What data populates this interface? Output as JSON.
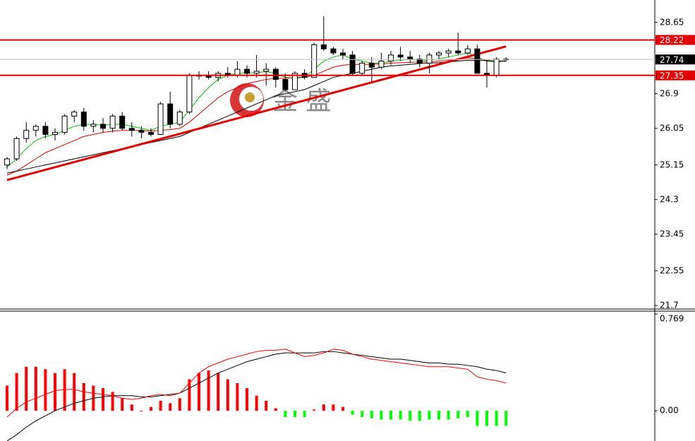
{
  "watermark": "金 盛",
  "chart_data": [
    {
      "type": "candlestick",
      "open": [
        25.15,
        25.3,
        25.8,
        26.0,
        26.1,
        25.9,
        25.95,
        26.35,
        26.45,
        26.1,
        26.15,
        26.05,
        26.35,
        26.05,
        26.0,
        25.95,
        25.9,
        26.65,
        26.15,
        26.45,
        27.35,
        27.35,
        27.3,
        27.4,
        27.35,
        27.5,
        27.4,
        27.45,
        27.5,
        27.25,
        27.0,
        27.4,
        27.3,
        28.1,
        28.0,
        27.9,
        27.85,
        27.4,
        27.65,
        27.55,
        27.7,
        27.85,
        27.8,
        27.75,
        27.65,
        27.85,
        27.9,
        27.95,
        27.9,
        28.0,
        27.4,
        27.35,
        27.75
      ],
      "high": [
        25.35,
        25.85,
        26.2,
        26.15,
        26.2,
        26.05,
        26.4,
        26.5,
        26.55,
        26.25,
        26.3,
        26.4,
        26.45,
        26.2,
        26.1,
        26.05,
        26.7,
        26.95,
        26.5,
        27.4,
        27.45,
        27.45,
        27.45,
        27.55,
        27.7,
        27.6,
        27.85,
        27.65,
        27.55,
        27.4,
        27.45,
        27.5,
        28.15,
        28.8,
        28.05,
        28.0,
        27.95,
        27.7,
        27.8,
        27.9,
        27.95,
        28.05,
        27.95,
        27.85,
        27.9,
        27.95,
        28.0,
        28.4,
        28.1,
        28.1,
        27.7,
        27.8,
        27.8
      ],
      "low": [
        25.05,
        25.25,
        25.7,
        25.85,
        25.8,
        25.75,
        25.9,
        26.2,
        26.0,
        25.95,
        25.95,
        25.95,
        26.0,
        25.85,
        25.8,
        25.85,
        25.9,
        26.05,
        26.1,
        26.4,
        27.25,
        27.25,
        27.2,
        27.3,
        27.3,
        27.3,
        27.3,
        27.1,
        27.05,
        26.95,
        27.0,
        27.25,
        27.3,
        27.95,
        27.85,
        27.75,
        27.35,
        27.35,
        27.2,
        27.5,
        27.6,
        27.7,
        27.65,
        27.55,
        27.4,
        27.75,
        27.8,
        27.85,
        27.85,
        27.45,
        27.05,
        27.3,
        27.7
      ],
      "close": [
        25.3,
        25.8,
        26.0,
        26.1,
        25.9,
        25.95,
        26.35,
        26.45,
        26.1,
        26.15,
        26.05,
        26.35,
        26.05,
        26.0,
        25.95,
        25.9,
        26.65,
        26.15,
        26.45,
        27.35,
        27.35,
        27.3,
        27.4,
        27.35,
        27.5,
        27.4,
        27.45,
        27.5,
        27.25,
        27.0,
        27.4,
        27.3,
        28.1,
        28.0,
        27.9,
        27.85,
        27.4,
        27.65,
        27.55,
        27.7,
        27.85,
        27.8,
        27.75,
        27.65,
        27.85,
        27.9,
        27.95,
        27.9,
        28.0,
        27.4,
        27.35,
        27.75,
        27.74
      ],
      "series": [
        {
          "color": "#00c000",
          "values": [
            25.1,
            25.3,
            25.55,
            25.75,
            25.85,
            25.9,
            26.0,
            26.1,
            26.15,
            26.15,
            26.12,
            26.15,
            26.15,
            26.1,
            26.05,
            26.0,
            26.1,
            26.15,
            26.2,
            26.5,
            26.8,
            27.05,
            27.25,
            27.35,
            27.4,
            27.4,
            27.42,
            27.44,
            27.4,
            27.3,
            27.28,
            27.3,
            27.5,
            27.7,
            27.8,
            27.85,
            27.75,
            27.7,
            27.65,
            27.65,
            27.7,
            27.72,
            27.75,
            27.72,
            27.72,
            27.75,
            27.8,
            27.85,
            27.9,
            27.8,
            27.7,
            27.68,
            27.7
          ]
        },
        {
          "color": "#e00000",
          "values": [
            24.9,
            25.0,
            25.15,
            25.3,
            25.45,
            25.55,
            25.65,
            25.75,
            25.85,
            25.9,
            25.95,
            25.98,
            26.0,
            26.0,
            26.0,
            25.98,
            26.0,
            26.02,
            26.05,
            26.2,
            26.4,
            26.6,
            26.8,
            26.95,
            27.05,
            27.15,
            27.2,
            27.25,
            27.28,
            27.28,
            27.3,
            27.3,
            27.35,
            27.45,
            27.55,
            27.6,
            27.62,
            27.62,
            27.62,
            27.63,
            27.65,
            27.66,
            27.67,
            27.68,
            27.68,
            27.7,
            27.72,
            27.75,
            27.78,
            27.76,
            27.72,
            27.7,
            27.7
          ]
        },
        {
          "color": "#000000",
          "values": [
            24.95,
            25.0,
            25.05,
            25.1,
            25.15,
            25.2,
            25.25,
            25.3,
            25.35,
            25.4,
            25.45,
            25.5,
            25.55,
            25.6,
            25.65,
            25.7,
            25.75,
            25.8,
            25.85,
            25.95,
            26.05,
            26.15,
            26.25,
            26.35,
            26.45,
            26.55,
            26.65,
            26.75,
            26.85,
            26.9,
            26.95,
            27.0,
            27.1,
            27.2,
            27.3,
            27.35,
            27.4,
            27.45,
            27.5,
            27.55,
            27.58,
            27.6,
            27.62,
            27.64,
            27.65,
            27.66,
            27.68,
            27.7,
            27.72,
            27.72,
            27.71,
            27.7,
            27.7
          ]
        }
      ],
      "trendline": [
        24.78,
        28.06
      ],
      "levels": [
        28.22,
        27.74,
        27.35
      ],
      "level_colors": [
        "#e00000",
        "#c0c0c0",
        "#e00000"
      ],
      "level_label_colors": [
        "#e00000",
        "#000000",
        "#e00000"
      ],
      "ylim": [
        21.63,
        29.2
      ],
      "yticks": [
        28.65,
        26.9,
        26.05,
        25.15,
        24.3,
        23.45,
        22.55,
        21.7
      ]
    },
    {
      "type": "macd",
      "values": [
        0.2,
        0.3,
        0.35,
        0.35,
        0.33,
        0.3,
        0.33,
        0.3,
        0.22,
        0.2,
        0.18,
        0.15,
        0.1,
        0.05,
        0.0,
        0.03,
        0.08,
        0.06,
        0.1,
        0.25,
        0.3,
        0.32,
        0.3,
        0.25,
        0.22,
        0.18,
        0.12,
        0.08,
        0.02,
        -0.05,
        -0.05,
        -0.05,
        0.01,
        0.05,
        0.05,
        0.03,
        -0.03,
        -0.05,
        -0.06,
        -0.07,
        -0.07,
        -0.07,
        -0.08,
        -0.08,
        -0.07,
        -0.07,
        -0.07,
        -0.06,
        -0.05,
        -0.12,
        -0.12,
        -0.12,
        -0.12
      ],
      "up_color": "#ff0000",
      "down_color": "#00ff00",
      "series": [
        {
          "color": "#000000",
          "values": [
            -0.24,
            -0.19,
            -0.13,
            -0.08,
            -0.04,
            0.0,
            0.03,
            0.06,
            0.08,
            0.1,
            0.11,
            0.12,
            0.12,
            0.12,
            0.11,
            0.11,
            0.12,
            0.13,
            0.14,
            0.18,
            0.22,
            0.26,
            0.3,
            0.33,
            0.36,
            0.39,
            0.41,
            0.43,
            0.45,
            0.46,
            0.46,
            0.46,
            0.46,
            0.47,
            0.47,
            0.46,
            0.45,
            0.44,
            0.43,
            0.42,
            0.41,
            0.41,
            0.4,
            0.39,
            0.38,
            0.38,
            0.37,
            0.37,
            0.36,
            0.35,
            0.33,
            0.32,
            0.3
          ]
        },
        {
          "color": "#ff0000",
          "values": [
            -0.05,
            0.02,
            0.07,
            0.1,
            0.13,
            0.16,
            0.17,
            0.17,
            0.15,
            0.14,
            0.13,
            0.12,
            0.1,
            0.09,
            0.1,
            0.12,
            0.13,
            0.12,
            0.14,
            0.22,
            0.3,
            0.35,
            0.38,
            0.41,
            0.43,
            0.45,
            0.47,
            0.48,
            0.48,
            0.49,
            0.46,
            0.43,
            0.44,
            0.46,
            0.49,
            0.48,
            0.45,
            0.43,
            0.41,
            0.4,
            0.39,
            0.38,
            0.37,
            0.36,
            0.35,
            0.35,
            0.35,
            0.34,
            0.33,
            0.27,
            0.25,
            0.24,
            0.22
          ]
        }
      ],
      "ylim": [
        -0.24,
        0.78
      ],
      "yticks": [
        {
          "value": 0,
          "label": "0.00"
        },
        0.769
      ]
    }
  ]
}
